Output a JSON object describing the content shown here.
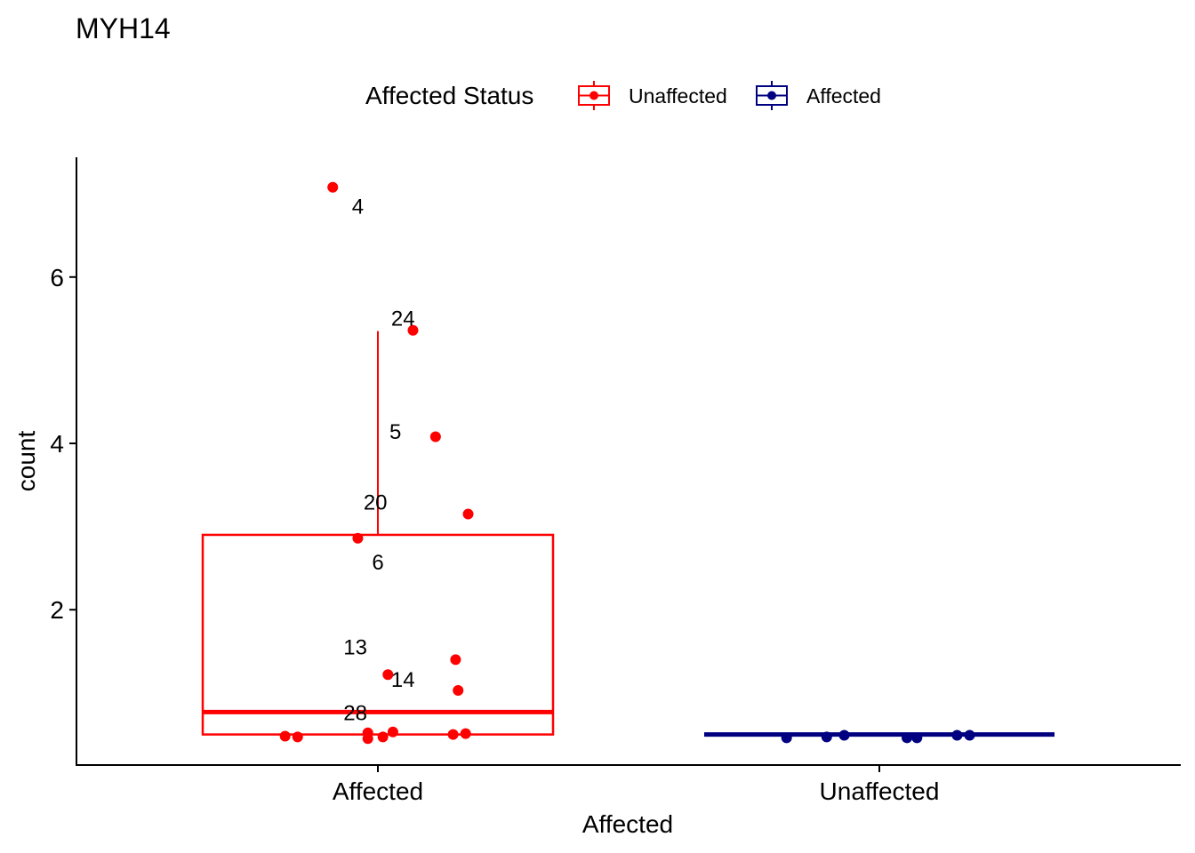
{
  "chart_data": {
    "type": "boxplot",
    "title": "MYH14",
    "xlabel": "Affected",
    "ylabel": "count",
    "ylim": [
      0.0,
      7.3
    ],
    "yticks": [
      2,
      4,
      6
    ],
    "categories": [
      "Affected",
      "Unaffected"
    ],
    "grid": false,
    "legend": {
      "title": "Affected Status",
      "position": "top",
      "entries": [
        {
          "label": "Unaffected",
          "color": "#ff0000"
        },
        {
          "label": "Affected",
          "color": "#000080"
        }
      ]
    },
    "series": [
      {
        "category": "Affected",
        "color": "#ff0000",
        "box": {
          "lower_whisker": 0.5,
          "q1": 0.5,
          "median": 0.77,
          "q3": 2.9,
          "upper_whisker": 5.35
        },
        "points": [
          {
            "x_offset": -0.09,
            "y": 7.08
          },
          {
            "x_offset": 0.07,
            "y": 5.36
          },
          {
            "x_offset": 0.115,
            "y": 4.08
          },
          {
            "x_offset": 0.18,
            "y": 3.15
          },
          {
            "x_offset": -0.04,
            "y": 2.86
          },
          {
            "x_offset": 0.155,
            "y": 1.4
          },
          {
            "x_offset": 0.02,
            "y": 1.22
          },
          {
            "x_offset": 0.16,
            "y": 1.03
          },
          {
            "x_offset": -0.185,
            "y": 0.48
          },
          {
            "x_offset": -0.16,
            "y": 0.47
          },
          {
            "x_offset": -0.02,
            "y": 0.52
          },
          {
            "x_offset": -0.02,
            "y": 0.45
          },
          {
            "x_offset": 0.01,
            "y": 0.47
          },
          {
            "x_offset": 0.03,
            "y": 0.53
          },
          {
            "x_offset": 0.15,
            "y": 0.5
          },
          {
            "x_offset": 0.175,
            "y": 0.51
          }
        ],
        "labels": [
          {
            "text": "4",
            "x_offset": -0.04,
            "y": 6.86
          },
          {
            "text": "24",
            "x_offset": 0.05,
            "y": 5.51
          },
          {
            "text": "5",
            "x_offset": 0.035,
            "y": 4.15
          },
          {
            "text": "20",
            "x_offset": -0.005,
            "y": 3.3
          },
          {
            "text": "6",
            "x_offset": 0.0,
            "y": 2.58
          },
          {
            "text": "13",
            "x_offset": -0.045,
            "y": 1.56
          },
          {
            "text": "14",
            "x_offset": 0.05,
            "y": 1.17
          },
          {
            "text": "28",
            "x_offset": -0.045,
            "y": 0.77
          }
        ]
      },
      {
        "category": "Unaffected",
        "color": "#000080",
        "box": {
          "lower_whisker": 0.5,
          "q1": 0.5,
          "median": 0.5,
          "q3": 0.5,
          "upper_whisker": 0.5
        },
        "points": [
          {
            "x_offset": -0.185,
            "y": 0.46
          },
          {
            "x_offset": -0.105,
            "y": 0.47
          },
          {
            "x_offset": -0.07,
            "y": 0.49
          },
          {
            "x_offset": 0.055,
            "y": 0.46
          },
          {
            "x_offset": 0.075,
            "y": 0.46
          },
          {
            "x_offset": 0.155,
            "y": 0.49
          },
          {
            "x_offset": 0.18,
            "y": 0.49
          }
        ],
        "labels": []
      }
    ]
  }
}
